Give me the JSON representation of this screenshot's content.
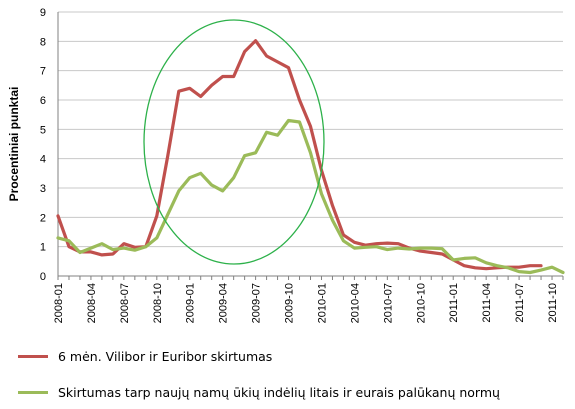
{
  "chart_data": {
    "type": "line",
    "ylabel": "Procentiniai punktai",
    "ylim": [
      0,
      9
    ],
    "yticks": [
      0,
      1,
      2,
      3,
      4,
      5,
      6,
      7,
      8,
      9
    ],
    "xtick_labels": [
      "2008-01",
      "2008-04",
      "2008-07",
      "2008-10",
      "2009-01",
      "2009-04",
      "2009-07",
      "2009-10",
      "2010-01",
      "2010-04",
      "2010-07",
      "2010-10",
      "2011-01",
      "2011-04",
      "2011-07",
      "2011-10"
    ],
    "grid": "horizontal",
    "legend_position": "bottom",
    "annotation": "ellipse around 2008-10 to 2010-01",
    "series": [
      {
        "name": "6 mėn. Vilibor ir Euribor skirtumas",
        "color": "#c0504d",
        "x": [
          "2008-01",
          "2008-02",
          "2008-03",
          "2008-04",
          "2008-05",
          "2008-06",
          "2008-07",
          "2008-08",
          "2008-09",
          "2008-10",
          "2008-11",
          "2008-12",
          "2009-01",
          "2009-02",
          "2009-03",
          "2009-04",
          "2009-05",
          "2009-06",
          "2009-07",
          "2009-08",
          "2009-09",
          "2009-10",
          "2009-11",
          "2009-12",
          "2010-01",
          "2010-02",
          "2010-03",
          "2010-04",
          "2010-05",
          "2010-06",
          "2010-07",
          "2010-08",
          "2010-09",
          "2010-10",
          "2010-11",
          "2010-12",
          "2011-01",
          "2011-02",
          "2011-03",
          "2011-04",
          "2011-05",
          "2011-06",
          "2011-07",
          "2011-08",
          "2011-09"
        ],
        "values": [
          2.05,
          1.0,
          0.82,
          0.82,
          0.72,
          0.75,
          1.1,
          0.98,
          1.0,
          2.05,
          4.1,
          6.3,
          6.4,
          6.12,
          6.5,
          6.8,
          6.8,
          7.65,
          8.02,
          7.5,
          7.3,
          7.1,
          6.0,
          5.1,
          3.6,
          2.4,
          1.4,
          1.15,
          1.05,
          1.1,
          1.12,
          1.1,
          0.95,
          0.85,
          0.8,
          0.75,
          0.55,
          0.35,
          0.28,
          0.25,
          0.28,
          0.3,
          0.3,
          0.35,
          0.35
        ]
      },
      {
        "name": "Skirtumas tarp naujų namų ūkių indėlių litais ir eurais palūkanų normų",
        "color": "#9bbb59",
        "x": [
          "2008-01",
          "2008-02",
          "2008-03",
          "2008-04",
          "2008-05",
          "2008-06",
          "2008-07",
          "2008-08",
          "2008-09",
          "2008-10",
          "2008-11",
          "2008-12",
          "2009-01",
          "2009-02",
          "2009-03",
          "2009-04",
          "2009-05",
          "2009-06",
          "2009-07",
          "2009-08",
          "2009-09",
          "2009-10",
          "2009-11",
          "2009-12",
          "2010-01",
          "2010-02",
          "2010-03",
          "2010-04",
          "2010-05",
          "2010-06",
          "2010-07",
          "2010-08",
          "2010-09",
          "2010-10",
          "2010-11",
          "2010-12",
          "2011-01",
          "2011-02",
          "2011-03",
          "2011-04",
          "2011-05",
          "2011-06",
          "2011-07",
          "2011-08",
          "2011-09",
          "2011-10",
          "2011-11"
        ],
        "values": [
          1.3,
          1.2,
          0.8,
          0.95,
          1.1,
          0.9,
          0.95,
          0.88,
          1.0,
          1.3,
          2.1,
          2.9,
          3.35,
          3.5,
          3.1,
          2.9,
          3.35,
          4.1,
          4.2,
          4.9,
          4.8,
          5.3,
          5.25,
          4.2,
          2.8,
          1.9,
          1.2,
          0.95,
          0.98,
          1.0,
          0.9,
          0.95,
          0.92,
          0.95,
          0.95,
          0.93,
          0.55,
          0.6,
          0.62,
          0.45,
          0.35,
          0.28,
          0.15,
          0.12,
          0.2,
          0.3,
          0.12
        ]
      }
    ]
  }
}
